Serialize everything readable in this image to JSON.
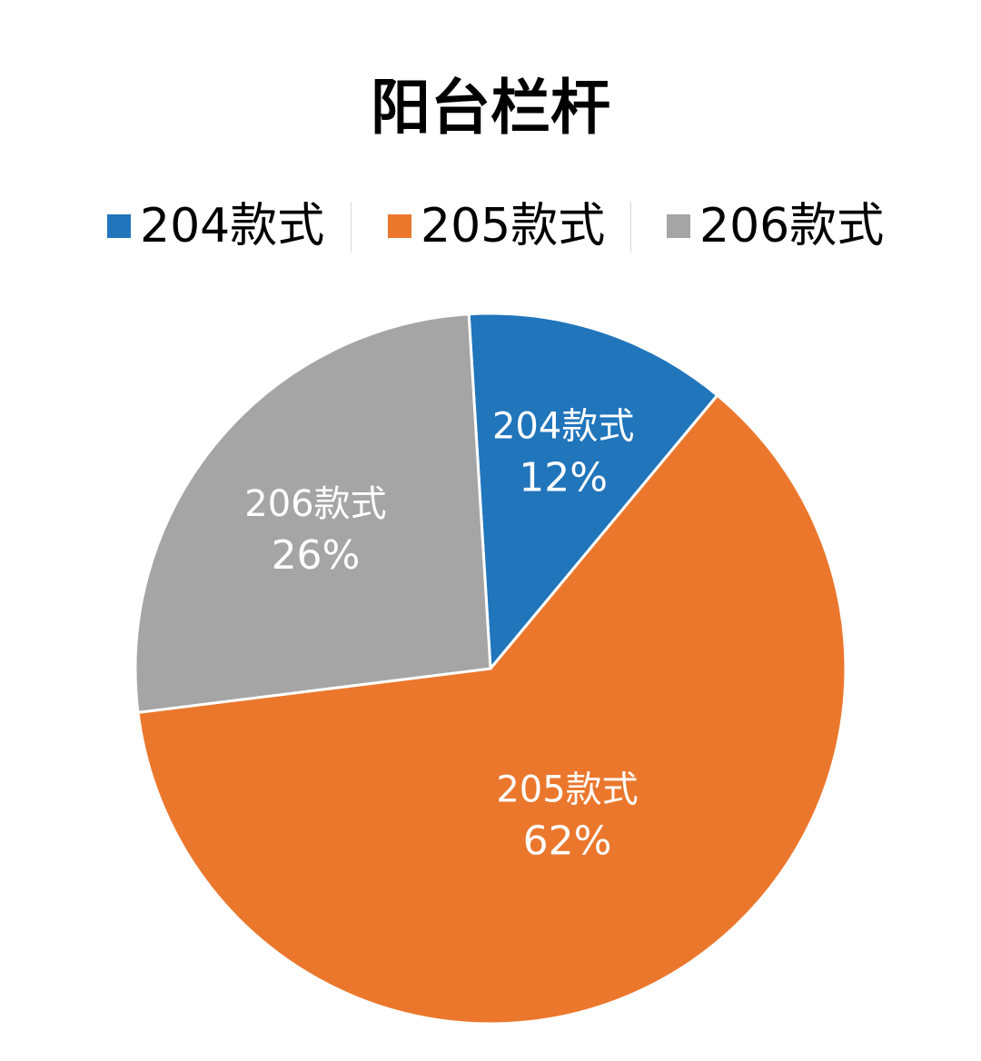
{
  "chart_data": {
    "type": "pie",
    "title": "阳台栏杆",
    "legend": "top",
    "slices": [
      {
        "category": "204款式",
        "value": 12,
        "label": "12%",
        "color": "#2175BB"
      },
      {
        "category": "205款式",
        "value": 62,
        "label": "62%",
        "color": "#EB772D"
      },
      {
        "category": "206款式",
        "value": 26,
        "label": "26%",
        "color": "#A5A5A5"
      }
    ]
  }
}
